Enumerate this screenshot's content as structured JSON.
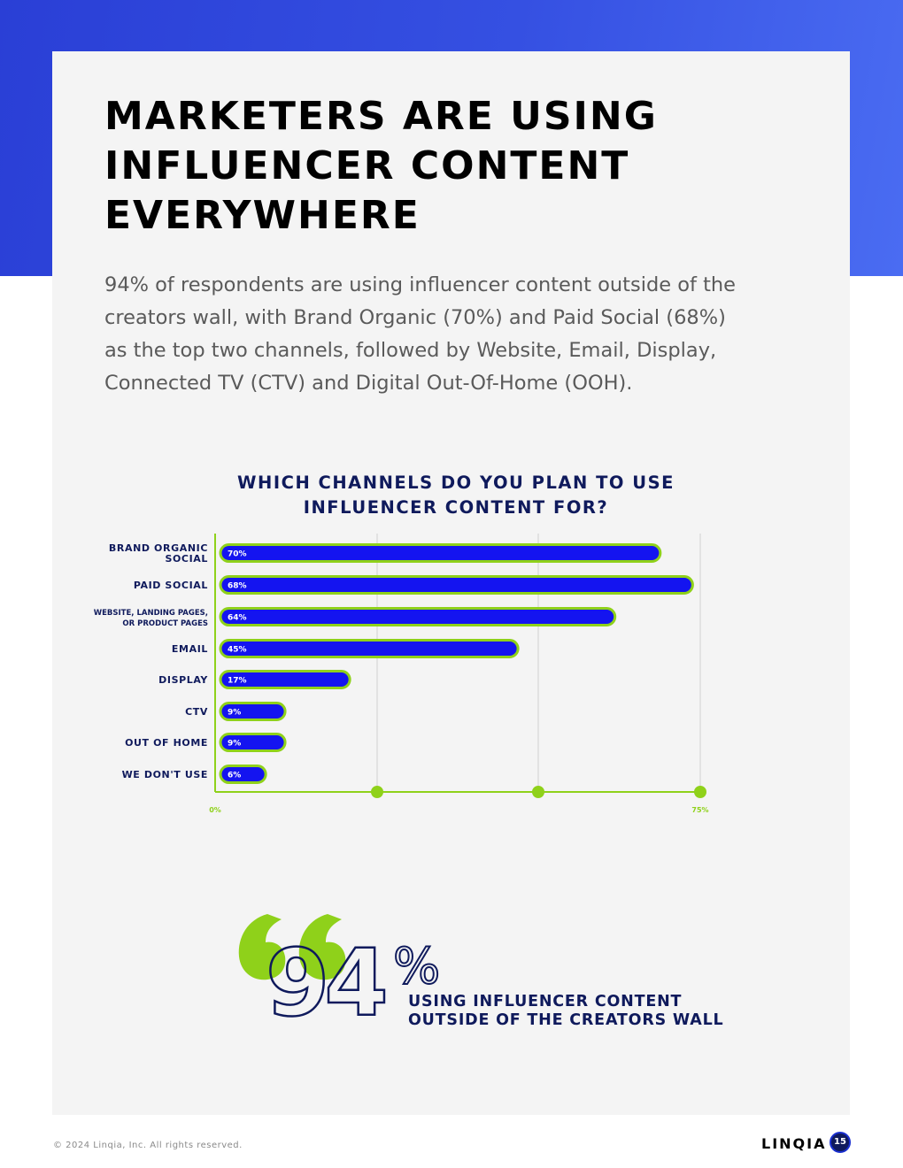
{
  "page": {
    "title_lines": [
      "MARKETERS ARE USING",
      "INFLUENCER CONTENT",
      "EVERYWHERE"
    ],
    "intro_lines": [
      "94% of respondents are using influencer content outside of the",
      "creators wall, with Brand Organic (70%) and Paid Social (68%)",
      "as the top two channels, followed by Website, Email, Display,",
      "Connected TV (CTV) and Digital Out-Of-Home (OOH)."
    ],
    "colors": {
      "band": "#3550e2",
      "bar": "#1414f0",
      "bar_outline": "#8fd11a",
      "navy": "#0f1a5c",
      "card": "#f4f4f4"
    }
  },
  "chart_data": {
    "type": "bar",
    "orientation": "horizontal",
    "title_lines": [
      "WHICH CHANNELS DO YOU PLAN TO USE",
      "INFLUENCER CONTENT FOR?"
    ],
    "categories": [
      [
        "BRAND ORGANIC",
        "SOCIAL"
      ],
      [
        "PAID SOCIAL"
      ],
      [
        "WEBSITE, LANDING PAGES,",
        "OR PRODUCT PAGES"
      ],
      [
        "EMAIL"
      ],
      [
        "DISPLAY"
      ],
      [
        "CTV"
      ],
      [
        "OUT OF HOME"
      ],
      [
        "WE DON'T USE"
      ]
    ],
    "values": [
      70,
      68,
      64,
      45,
      17,
      9,
      9,
      6
    ],
    "bar_lengths": [
      68,
      73,
      61,
      46,
      20,
      10,
      10,
      7
    ],
    "data_labels": [
      "70%",
      "68%",
      "64%",
      "45%",
      "17%",
      "9%",
      "9%",
      "6%"
    ],
    "xlim": [
      0,
      75
    ],
    "x_tick_labels": [
      "0%",
      "75%"
    ],
    "grid": true
  },
  "quote": {
    "number": "94",
    "percent": "%",
    "caption_lines": [
      "USING INFLUENCER CONTENT",
      "OUTSIDE OF THE CREATORS WALL"
    ]
  },
  "footer": {
    "copyright": "© 2024 Linqia, Inc. All rights reserved.",
    "logo": "LINQIA",
    "page_number": "15"
  }
}
